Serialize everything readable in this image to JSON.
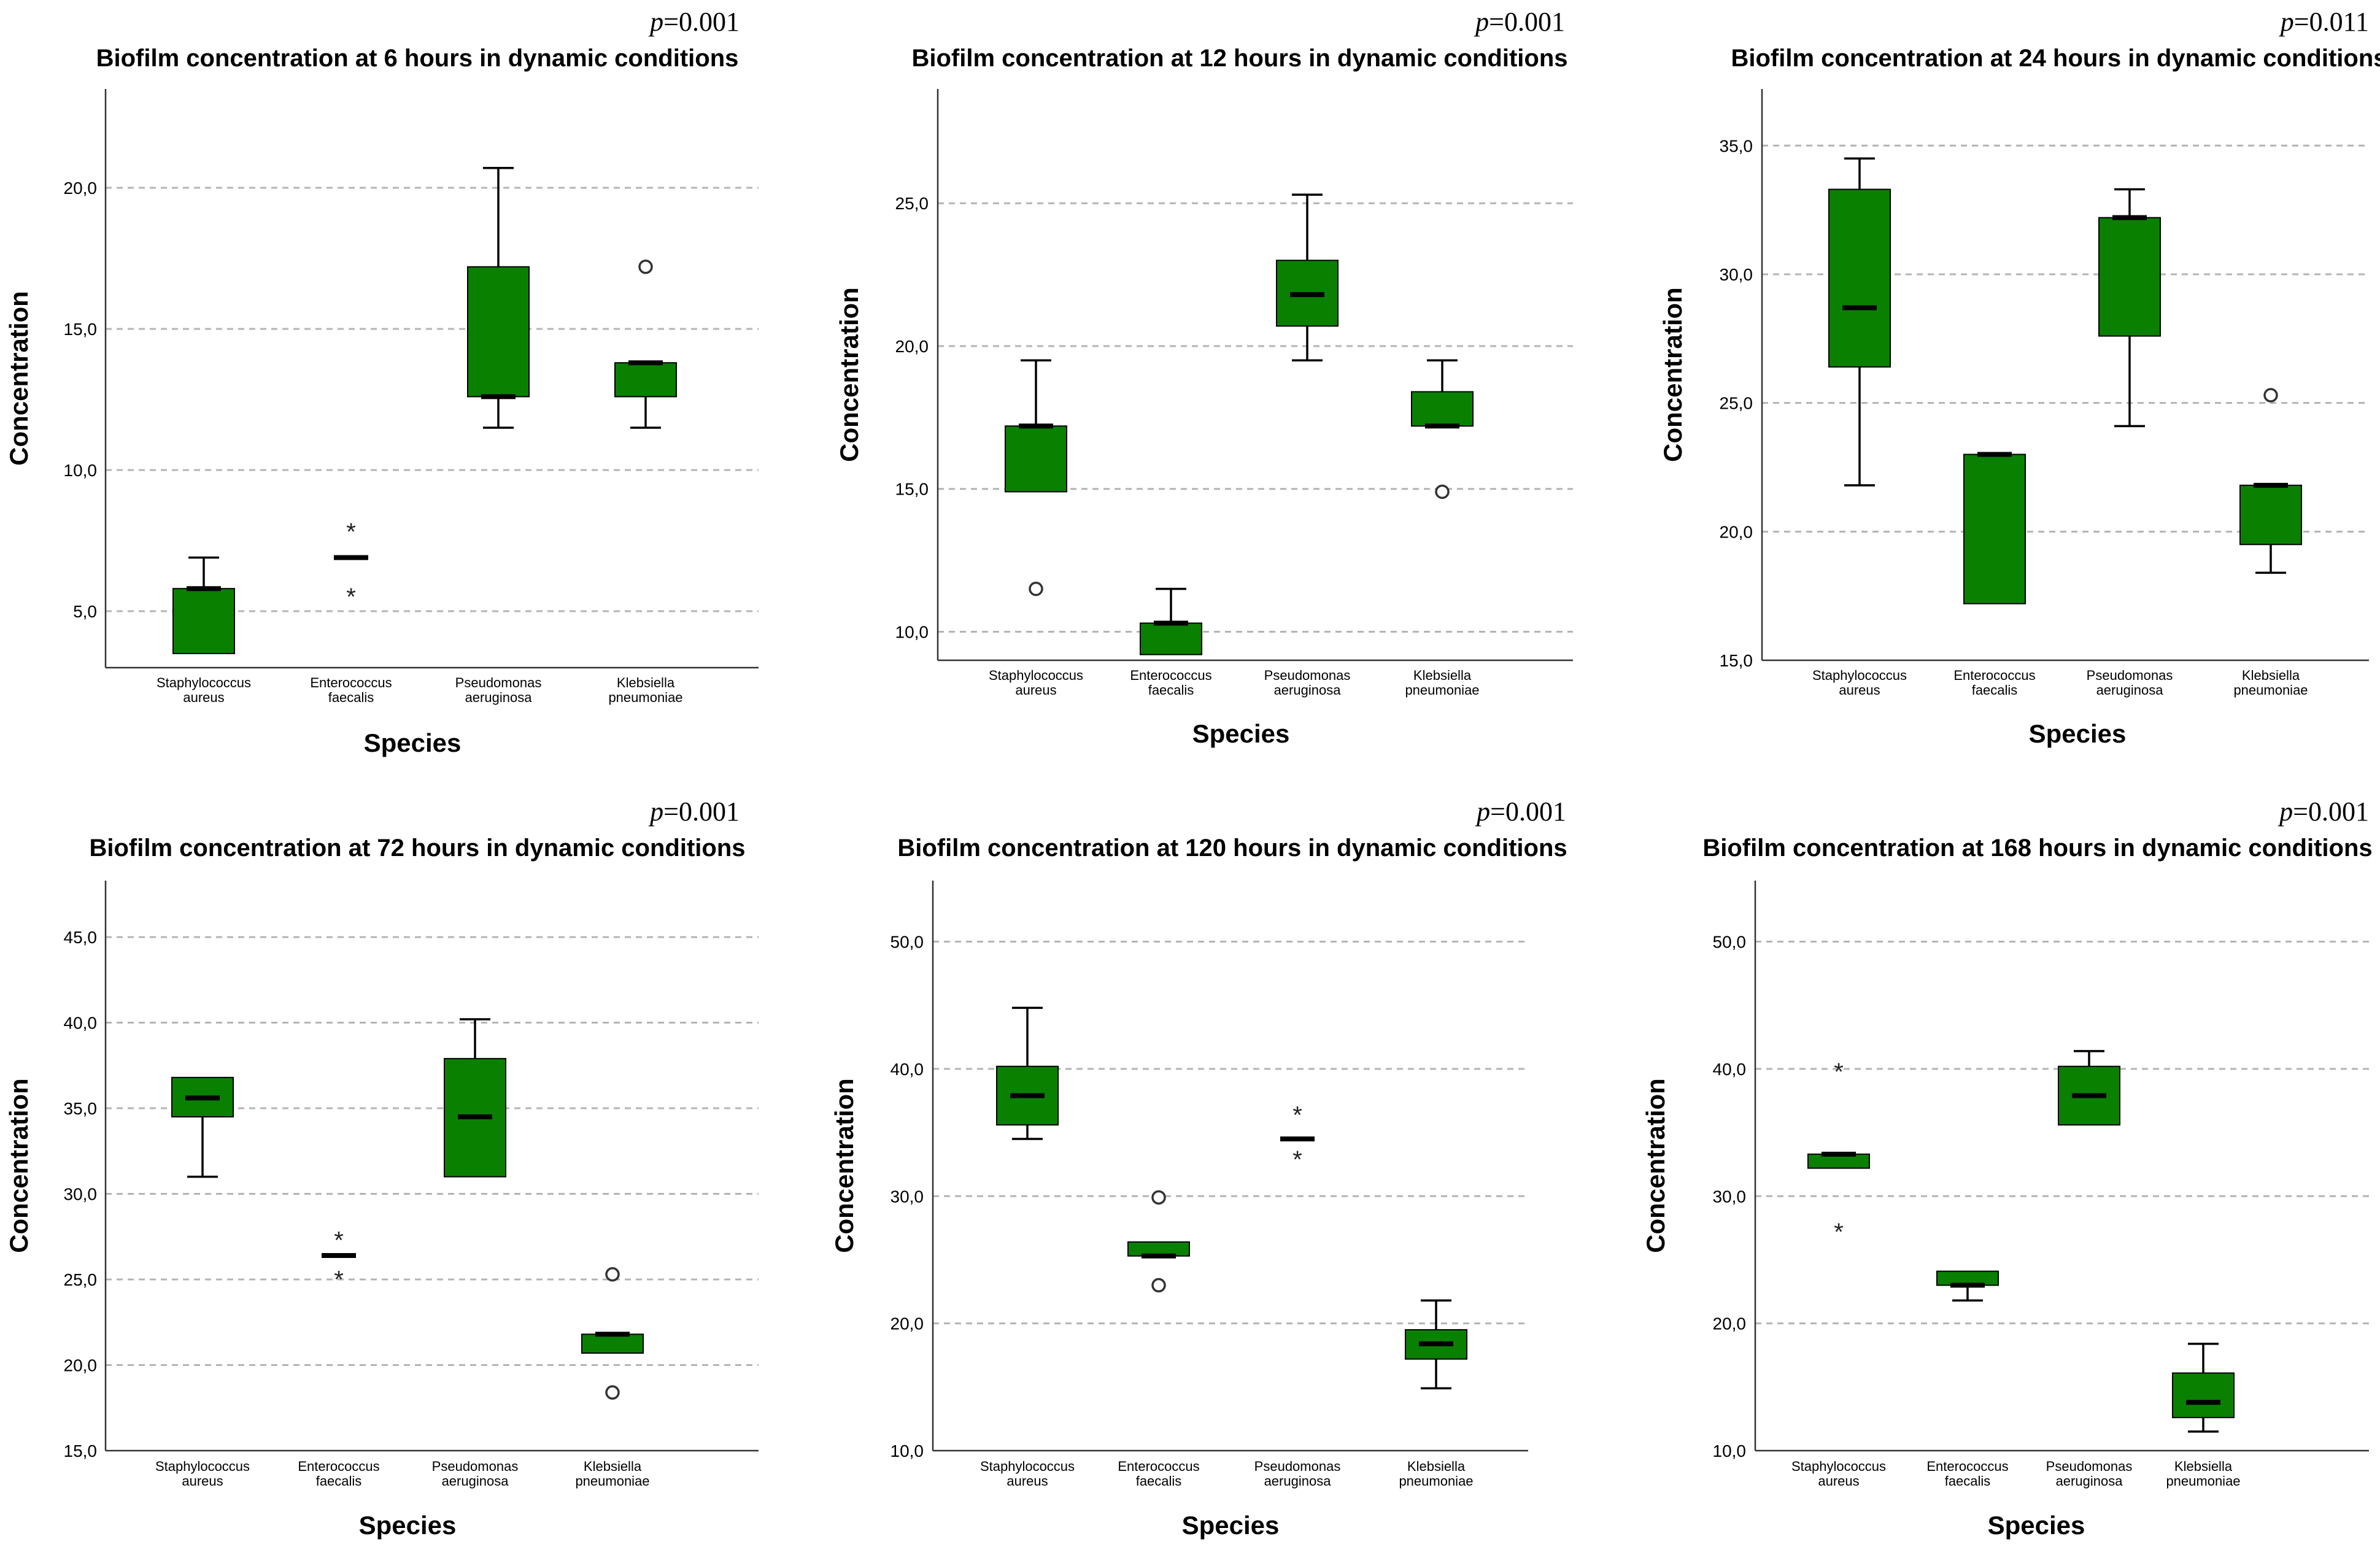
{
  "chart_data": [
    {
      "type": "box",
      "title": "Biofilm concentration at 6 hours in dynamic conditions",
      "p_value": "0.001",
      "xlabel": "Species",
      "ylabel": "Concentration",
      "ylim": [
        3.0,
        23.5
      ],
      "yticks": [
        5.0,
        10.0,
        15.0,
        20.0
      ],
      "ytick_labels": [
        "5,0",
        "10,0",
        "15,0",
        "20,0"
      ],
      "categories": [
        [
          "Staphylococcus",
          "aureus"
        ],
        [
          "Enterococcus",
          "faecalis"
        ],
        [
          "Pseudomonas",
          "aeruginosa"
        ],
        [
          "Klebsiella",
          "pneumoniae"
        ]
      ],
      "boxes": [
        {
          "whislo": 3.5,
          "q1": 3.5,
          "med": 5.8,
          "q3": 5.8,
          "whishi": 6.9,
          "outliers": [],
          "extremes": []
        },
        {
          "whislo": 6.9,
          "q1": 6.9,
          "med": 6.9,
          "q3": 6.9,
          "whishi": 6.9,
          "outliers": [],
          "extremes": [
            8.0,
            5.7
          ]
        },
        {
          "whislo": 11.5,
          "q1": 12.6,
          "med": 12.6,
          "q3": 17.2,
          "whishi": 20.7,
          "outliers": [],
          "extremes": []
        },
        {
          "whislo": 11.5,
          "q1": 12.6,
          "med": 13.8,
          "q3": 13.8,
          "whishi": 13.8,
          "outliers": [
            17.2
          ],
          "extremes": []
        }
      ]
    },
    {
      "type": "box",
      "title": "Biofilm concentration at 12 hours in dynamic conditions",
      "p_value": "0.001",
      "xlabel": "Species",
      "ylabel": "Concentration",
      "ylim": [
        9.0,
        29.0
      ],
      "yticks": [
        10.0,
        15.0,
        20.0,
        25.0
      ],
      "ytick_labels": [
        "10,0",
        "15,0",
        "20,0",
        "25,0"
      ],
      "categories": [
        [
          "Staphylococcus",
          "aureus"
        ],
        [
          "Enterococcus",
          "faecalis"
        ],
        [
          "Pseudomonas",
          "aeruginosa"
        ],
        [
          "Klebsiella",
          "pneumoniae"
        ]
      ],
      "boxes": [
        {
          "whislo": 14.9,
          "q1": 14.9,
          "med": 17.2,
          "q3": 17.2,
          "whishi": 19.5,
          "outliers": [
            11.5
          ],
          "extremes": []
        },
        {
          "whislo": 9.2,
          "q1": 9.2,
          "med": 10.3,
          "q3": 10.3,
          "whishi": 11.5,
          "outliers": [],
          "extremes": []
        },
        {
          "whislo": 19.5,
          "q1": 20.7,
          "med": 21.8,
          "q3": 23.0,
          "whishi": 25.3,
          "outliers": [],
          "extremes": []
        },
        {
          "whislo": 17.2,
          "q1": 17.2,
          "med": 17.2,
          "q3": 18.4,
          "whishi": 19.5,
          "outliers": [
            14.9
          ],
          "extremes": []
        }
      ]
    },
    {
      "type": "box",
      "title": "Biofilm concentration at 24 hours in dynamic conditions",
      "p_value": "0.011",
      "xlabel": "Species",
      "ylabel": "Concentration",
      "ylim": [
        15.0,
        37.2
      ],
      "yticks": [
        15.0,
        20.0,
        25.0,
        30.0,
        35.0
      ],
      "ytick_labels": [
        "15,0",
        "20,0",
        "25,0",
        "30,0",
        "35,0"
      ],
      "categories": [
        [
          "Staphylococcus",
          "aureus"
        ],
        [
          "Enterococcus",
          "faecalis"
        ],
        [
          "Pseudomonas",
          "aeruginosa"
        ],
        [
          "Klebsiella",
          "pneumoniae"
        ]
      ],
      "boxes": [
        {
          "whislo": 21.8,
          "q1": 26.4,
          "med": 28.7,
          "q3": 33.3,
          "whishi": 34.5,
          "outliers": [],
          "extremes": []
        },
        {
          "whislo": 17.2,
          "q1": 17.2,
          "med": 23.0,
          "q3": 23.0,
          "whishi": 23.0,
          "outliers": [],
          "extremes": []
        },
        {
          "whislo": 24.1,
          "q1": 27.6,
          "med": 32.2,
          "q3": 32.2,
          "whishi": 33.3,
          "outliers": [],
          "extremes": []
        },
        {
          "whislo": 18.4,
          "q1": 19.5,
          "med": 21.8,
          "q3": 21.8,
          "whishi": 21.8,
          "outliers": [
            25.3
          ],
          "extremes": []
        }
      ]
    },
    {
      "type": "box",
      "title": "Biofilm concentration at 72 hours in dynamic conditions",
      "p_value": "0.001",
      "xlabel": "Species",
      "ylabel": "Concentration",
      "ylim": [
        15.0,
        48.3
      ],
      "yticks": [
        15.0,
        20.0,
        25.0,
        30.0,
        35.0,
        40.0,
        45.0
      ],
      "ytick_labels": [
        "15,0",
        "20,0",
        "25,0",
        "30,0",
        "35,0",
        "40,0",
        "45,0"
      ],
      "categories": [
        [
          "Staphylococcus",
          "aureus"
        ],
        [
          "Enterococcus",
          "faecalis"
        ],
        [
          "Pseudomonas",
          "aeruginosa"
        ],
        [
          "Klebsiella",
          "pneumoniae"
        ]
      ],
      "boxes": [
        {
          "whislo": 31.0,
          "q1": 34.5,
          "med": 35.6,
          "q3": 36.8,
          "whishi": 36.8,
          "outliers": [],
          "extremes": []
        },
        {
          "whislo": 26.4,
          "q1": 26.4,
          "med": 26.4,
          "q3": 26.4,
          "whishi": 26.4,
          "outliers": [],
          "extremes": [
            27.6,
            25.3
          ]
        },
        {
          "whislo": 31.0,
          "q1": 31.0,
          "med": 34.5,
          "q3": 37.9,
          "whishi": 40.2,
          "outliers": [],
          "extremes": []
        },
        {
          "whislo": 20.7,
          "q1": 20.7,
          "med": 21.8,
          "q3": 21.8,
          "whishi": 21.8,
          "outliers": [
            25.3,
            18.4
          ],
          "extremes": []
        }
      ]
    },
    {
      "type": "box",
      "title": "Biofilm concentration at 120 hours in dynamic conditions",
      "p_value": "0.001",
      "xlabel": "Species",
      "ylabel": "Concentration",
      "ylim": [
        10.0,
        54.8
      ],
      "yticks": [
        10.0,
        20.0,
        30.0,
        40.0,
        50.0
      ],
      "ytick_labels": [
        "10,0",
        "20,0",
        "30,0",
        "40,0",
        "50,0"
      ],
      "categories": [
        [
          "Staphylococcus",
          "aureus"
        ],
        [
          "Enterococcus",
          "faecalis"
        ],
        [
          "Pseudomonas",
          "aeruginosa"
        ],
        [
          "Klebsiella",
          "pneumoniae"
        ]
      ],
      "boxes": [
        {
          "whislo": 34.5,
          "q1": 35.6,
          "med": 37.9,
          "q3": 40.2,
          "whishi": 44.8,
          "outliers": [],
          "extremes": []
        },
        {
          "whislo": 25.3,
          "q1": 25.3,
          "med": 25.3,
          "q3": 26.4,
          "whishi": 26.4,
          "outliers": [
            29.9,
            23.0
          ],
          "extremes": []
        },
        {
          "whislo": 34.5,
          "q1": 34.5,
          "med": 34.5,
          "q3": 34.5,
          "whishi": 34.5,
          "outliers": [],
          "extremes": [
            36.8,
            33.3
          ]
        },
        {
          "whislo": 14.9,
          "q1": 17.2,
          "med": 18.4,
          "q3": 19.5,
          "whishi": 21.8,
          "outliers": [],
          "extremes": []
        }
      ]
    },
    {
      "type": "box",
      "title": "Biofilm concentration at 168 hours in dynamic conditions",
      "p_value": "0.001",
      "xlabel": "Species",
      "ylabel": "Concentration",
      "ylim": [
        10.0,
        54.8
      ],
      "yticks": [
        10.0,
        20.0,
        30.0,
        40.0,
        50.0
      ],
      "ytick_labels": [
        "10,0",
        "20,0",
        "30,0",
        "40,0",
        "50,0"
      ],
      "categories": [
        [
          "Staphylococcus",
          "aureus"
        ],
        [
          "Enterococcus",
          "faecalis"
        ],
        [
          "Pseudomonas",
          "aeruginosa"
        ],
        [
          "Klebsiella",
          "pneumoniae"
        ]
      ],
      "boxes": [
        {
          "whislo": 32.2,
          "q1": 32.2,
          "med": 33.3,
          "q3": 33.3,
          "whishi": 33.3,
          "outliers": [],
          "extremes": [
            40.2,
            27.6
          ]
        },
        {
          "whislo": 21.8,
          "q1": 23.0,
          "med": 23.0,
          "q3": 24.1,
          "whishi": 24.1,
          "outliers": [],
          "extremes": []
        },
        {
          "whislo": 35.6,
          "q1": 35.6,
          "med": 37.9,
          "q3": 40.2,
          "whishi": 41.4,
          "outliers": [],
          "extremes": []
        },
        {
          "whislo": 11.5,
          "q1": 12.6,
          "med": 13.8,
          "q3": 16.1,
          "whishi": 18.4,
          "outliers": [],
          "extremes": []
        }
      ]
    }
  ],
  "p_prefix": "p",
  "p_equals": "=",
  "colors": {
    "box_fill": "#0a8000",
    "grid": "#b4b4b4",
    "outlier": "#333333"
  }
}
